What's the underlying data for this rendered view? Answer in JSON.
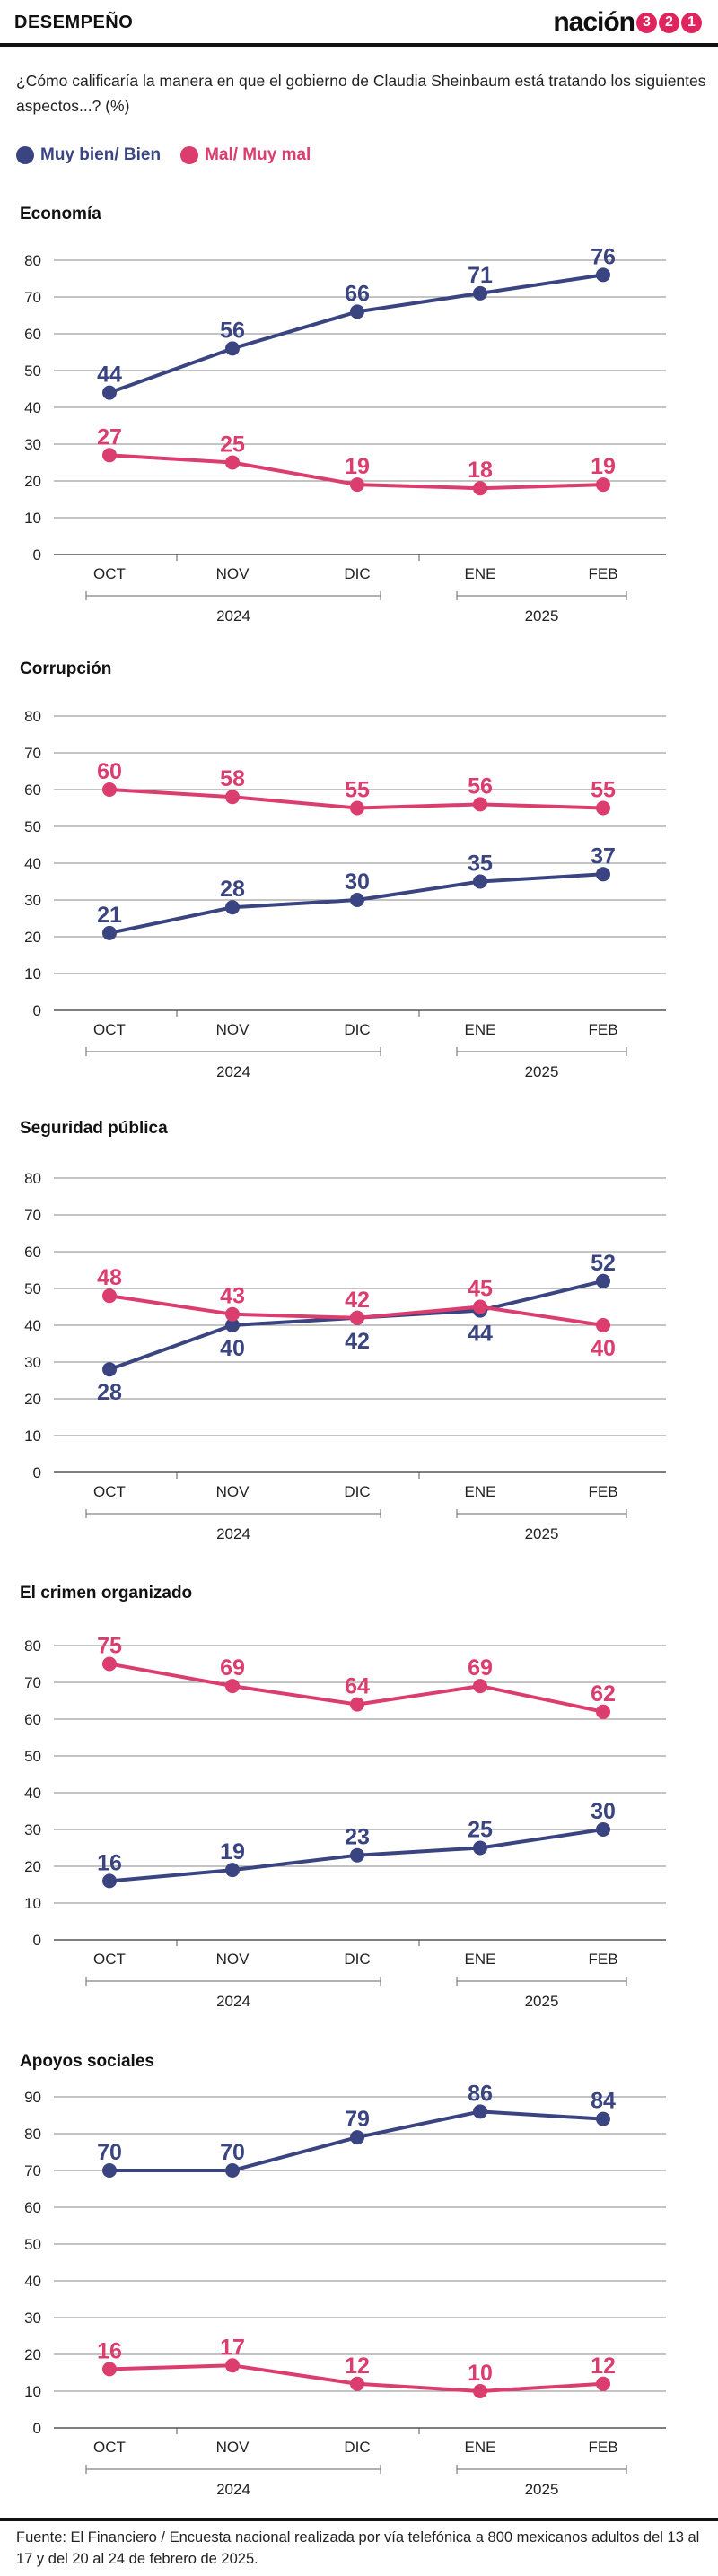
{
  "header": {
    "section": "DESEMPEÑO",
    "brand_word": "nación",
    "brand_digits": [
      "3",
      "2",
      "1"
    ]
  },
  "question": "¿Cómo calificaría la manera en que el gobierno de Claudia Sheinbaum está tratando los siguientes aspectos...? (%)",
  "legend": [
    {
      "label": "Muy bien/ Bien",
      "color": "#3a4480"
    },
    {
      "label": "Mal/ Muy mal",
      "color": "#db3d6e"
    }
  ],
  "colors": {
    "positive": "#3a4480",
    "negative": "#db3d6e",
    "grid": "#888888",
    "text": "#222222"
  },
  "chart_data": [
    {
      "type": "line",
      "title": "Economía",
      "categories": [
        "OCT",
        "NOV",
        "DIC",
        "ENE",
        "FEB"
      ],
      "year_groups": [
        {
          "label": "2024",
          "from": 0,
          "to": 2
        },
        {
          "label": "2025",
          "from": 3,
          "to": 4
        }
      ],
      "ylim": [
        0,
        80
      ],
      "yticks": [
        0,
        10,
        20,
        30,
        40,
        50,
        60,
        70,
        80
      ],
      "grid": true,
      "series": [
        {
          "name": "Muy bien/ Bien",
          "values": [
            44,
            56,
            66,
            71,
            76
          ],
          "label_pos": [
            "above",
            "above",
            "above",
            "above",
            "above"
          ]
        },
        {
          "name": "Mal/ Muy mal",
          "values": [
            27,
            25,
            19,
            18,
            19
          ],
          "label_pos": [
            "above",
            "above",
            "above",
            "above",
            "above"
          ]
        }
      ]
    },
    {
      "type": "line",
      "title": "Corrupción",
      "categories": [
        "OCT",
        "NOV",
        "DIC",
        "ENE",
        "FEB"
      ],
      "year_groups": [
        {
          "label": "2024",
          "from": 0,
          "to": 2
        },
        {
          "label": "2025",
          "from": 3,
          "to": 4
        }
      ],
      "ylim": [
        0,
        80
      ],
      "yticks": [
        0,
        10,
        20,
        30,
        40,
        50,
        60,
        70,
        80
      ],
      "grid": true,
      "series": [
        {
          "name": "Muy bien/ Bien",
          "values": [
            21,
            28,
            30,
            35,
            37
          ],
          "label_pos": [
            "above",
            "above",
            "above",
            "above",
            "above"
          ]
        },
        {
          "name": "Mal/ Muy mal",
          "values": [
            60,
            58,
            55,
            56,
            55
          ],
          "label_pos": [
            "above",
            "above",
            "above",
            "above",
            "above"
          ]
        }
      ]
    },
    {
      "type": "line",
      "title": "Seguridad pública",
      "categories": [
        "OCT",
        "NOV",
        "DIC",
        "ENE",
        "FEB"
      ],
      "year_groups": [
        {
          "label": "2024",
          "from": 0,
          "to": 2
        },
        {
          "label": "2025",
          "from": 3,
          "to": 4
        }
      ],
      "ylim": [
        0,
        80
      ],
      "yticks": [
        0,
        10,
        20,
        30,
        40,
        50,
        60,
        70,
        80
      ],
      "grid": true,
      "series": [
        {
          "name": "Muy bien/ Bien",
          "values": [
            28,
            40,
            42,
            44,
            52
          ],
          "label_pos": [
            "below",
            "below",
            "below",
            "below",
            "above"
          ]
        },
        {
          "name": "Mal/ Muy mal",
          "values": [
            48,
            43,
            42,
            45,
            40
          ],
          "label_pos": [
            "above",
            "above",
            "above",
            "above",
            "below"
          ]
        }
      ]
    },
    {
      "type": "line",
      "title": "El crimen organizado",
      "categories": [
        "OCT",
        "NOV",
        "DIC",
        "ENE",
        "FEB"
      ],
      "year_groups": [
        {
          "label": "2024",
          "from": 0,
          "to": 2
        },
        {
          "label": "2025",
          "from": 3,
          "to": 4
        }
      ],
      "ylim": [
        0,
        80
      ],
      "yticks": [
        0,
        10,
        20,
        30,
        40,
        50,
        60,
        70,
        80
      ],
      "grid": true,
      "series": [
        {
          "name": "Muy bien/ Bien",
          "values": [
            16,
            19,
            23,
            25,
            30
          ],
          "label_pos": [
            "above",
            "above",
            "above",
            "above",
            "above"
          ]
        },
        {
          "name": "Mal/ Muy mal",
          "values": [
            75,
            69,
            64,
            69,
            62
          ],
          "label_pos": [
            "above",
            "above",
            "above",
            "above",
            "above"
          ]
        }
      ]
    },
    {
      "type": "line",
      "title": "Apoyos sociales",
      "categories": [
        "OCT",
        "NOV",
        "DIC",
        "ENE",
        "FEB"
      ],
      "year_groups": [
        {
          "label": "2024",
          "from": 0,
          "to": 2
        },
        {
          "label": "2025",
          "from": 3,
          "to": 4
        }
      ],
      "ylim": [
        0,
        90
      ],
      "yticks": [
        0,
        10,
        20,
        30,
        40,
        50,
        60,
        70,
        80,
        90
      ],
      "grid": true,
      "series": [
        {
          "name": "Muy bien/ Bien",
          "values": [
            70,
            70,
            79,
            86,
            84
          ],
          "label_pos": [
            "above",
            "above",
            "above",
            "above",
            "above"
          ]
        },
        {
          "name": "Mal/ Muy mal",
          "values": [
            16,
            17,
            12,
            10,
            12
          ],
          "label_pos": [
            "above",
            "above",
            "above",
            "above",
            "above"
          ]
        }
      ]
    }
  ],
  "footer": "Fuente: El Financiero / Encuesta nacional realizada por vía telefónica a 800 mexicanos adultos del 13 al 17 y del 20 al 24 de febrero de 2025."
}
